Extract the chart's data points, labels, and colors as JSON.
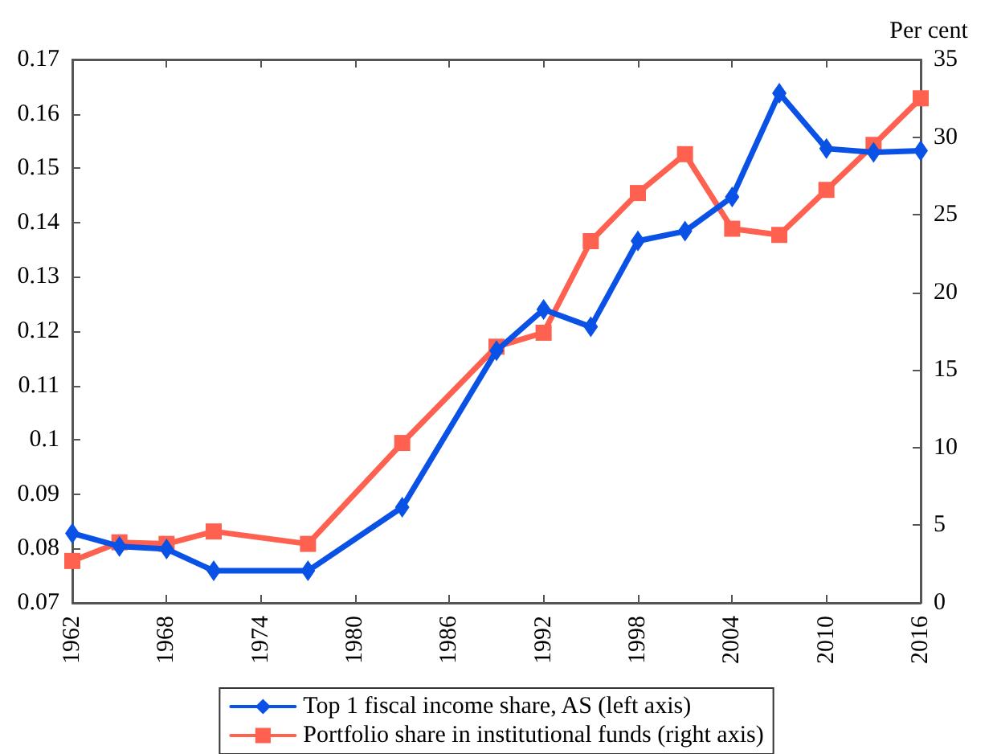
{
  "chart_data": {
    "type": "line",
    "y2label": "Per cent",
    "x": [
      1962,
      1965,
      1968,
      1971,
      1977,
      1983,
      1989,
      1992,
      1995,
      1998,
      2001,
      2004,
      2007,
      2010,
      2013,
      2016
    ],
    "series": [
      {
        "name": "Top 1 fiscal income share, AS (left axis)",
        "color": "#0a52e6",
        "marker": "diamond",
        "values": [
          0.0828,
          0.0804,
          0.0799,
          0.0759,
          0.0759,
          0.0876,
          0.1164,
          0.124,
          0.1208,
          0.1366,
          0.1384,
          0.1447,
          0.1638,
          0.1536,
          0.1529,
          0.1532
        ]
      },
      {
        "name": "Portfolio share in institutional funds (right axis)",
        "color": "#fe6150",
        "marker": "square",
        "axis": "y2",
        "values": [
          2.7,
          3.9,
          3.8,
          4.6,
          3.8,
          10.3,
          16.5,
          17.4,
          23.3,
          26.4,
          28.9,
          24.1,
          23.7,
          26.6,
          29.5,
          32.5
        ]
      }
    ],
    "xlim": [
      1962,
      2016
    ],
    "xticks": [
      1962,
      1968,
      1974,
      1980,
      1986,
      1992,
      1998,
      2004,
      2010,
      2016
    ],
    "ylim": [
      0.07,
      0.17
    ],
    "yticks": [
      0.07,
      0.08,
      0.09,
      0.1,
      0.11,
      0.12,
      0.13,
      0.14,
      0.15,
      0.16,
      0.17
    ],
    "y2lim": [
      0,
      35
    ],
    "y2ticks": [
      0,
      5,
      10,
      15,
      20,
      25,
      30,
      35
    ],
    "grid": false,
    "legend": "bottom"
  }
}
